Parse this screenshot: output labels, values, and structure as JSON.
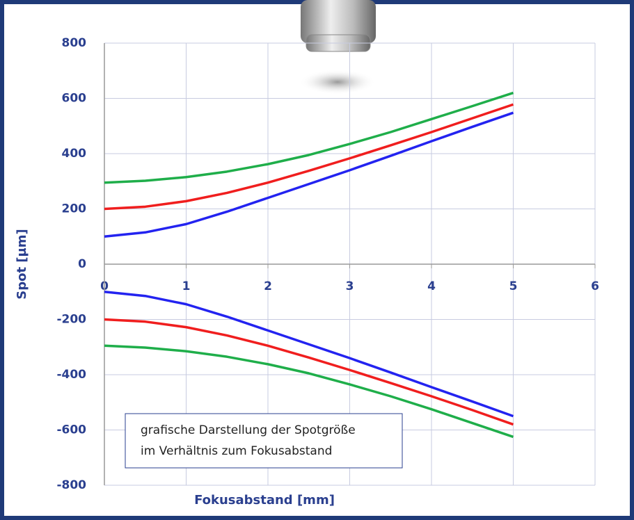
{
  "chart_data": {
    "type": "line",
    "x_label": "Fokusabstand [mm]",
    "y_label": "Spot [µm]",
    "annotation": [
      "grafische Darstellung der Spotgröße",
      "im Verhältnis zum Fokusabstand"
    ],
    "x": [
      0,
      0.5,
      1,
      1.5,
      2,
      2.5,
      3,
      3.5,
      4,
      4.5,
      5
    ],
    "series": [
      {
        "color": "#1fae4a",
        "values": [
          295,
          302,
          315,
          335,
          362,
          395,
          435,
          478,
          525,
          572,
          620
        ]
      },
      {
        "color": "#f01e1e",
        "values": [
          200,
          208,
          228,
          258,
          295,
          338,
          383,
          430,
          478,
          528,
          578
        ]
      },
      {
        "color": "#2323f0",
        "values": [
          100,
          115,
          145,
          190,
          240,
          290,
          340,
          392,
          445,
          497,
          548
        ]
      },
      {
        "color": "#2323f0",
        "values": [
          -100,
          -115,
          -145,
          -190,
          -240,
          -290,
          -340,
          -392,
          -445,
          -497,
          -550
        ]
      },
      {
        "color": "#f01e1e",
        "values": [
          -200,
          -208,
          -228,
          -258,
          -295,
          -338,
          -383,
          -430,
          -478,
          -528,
          -580
        ]
      },
      {
        "color": "#1fae4a",
        "values": [
          -295,
          -302,
          -315,
          -335,
          -362,
          -395,
          -435,
          -478,
          -525,
          -575,
          -625
        ]
      }
    ],
    "xlim": [
      0,
      6
    ],
    "xticks": [
      0,
      1,
      2,
      3,
      4,
      5,
      6
    ],
    "ylim": [
      -800,
      800
    ],
    "yticks": [
      -800,
      -600,
      -400,
      -200,
      0,
      200,
      400,
      600,
      800
    ],
    "grid": true
  }
}
